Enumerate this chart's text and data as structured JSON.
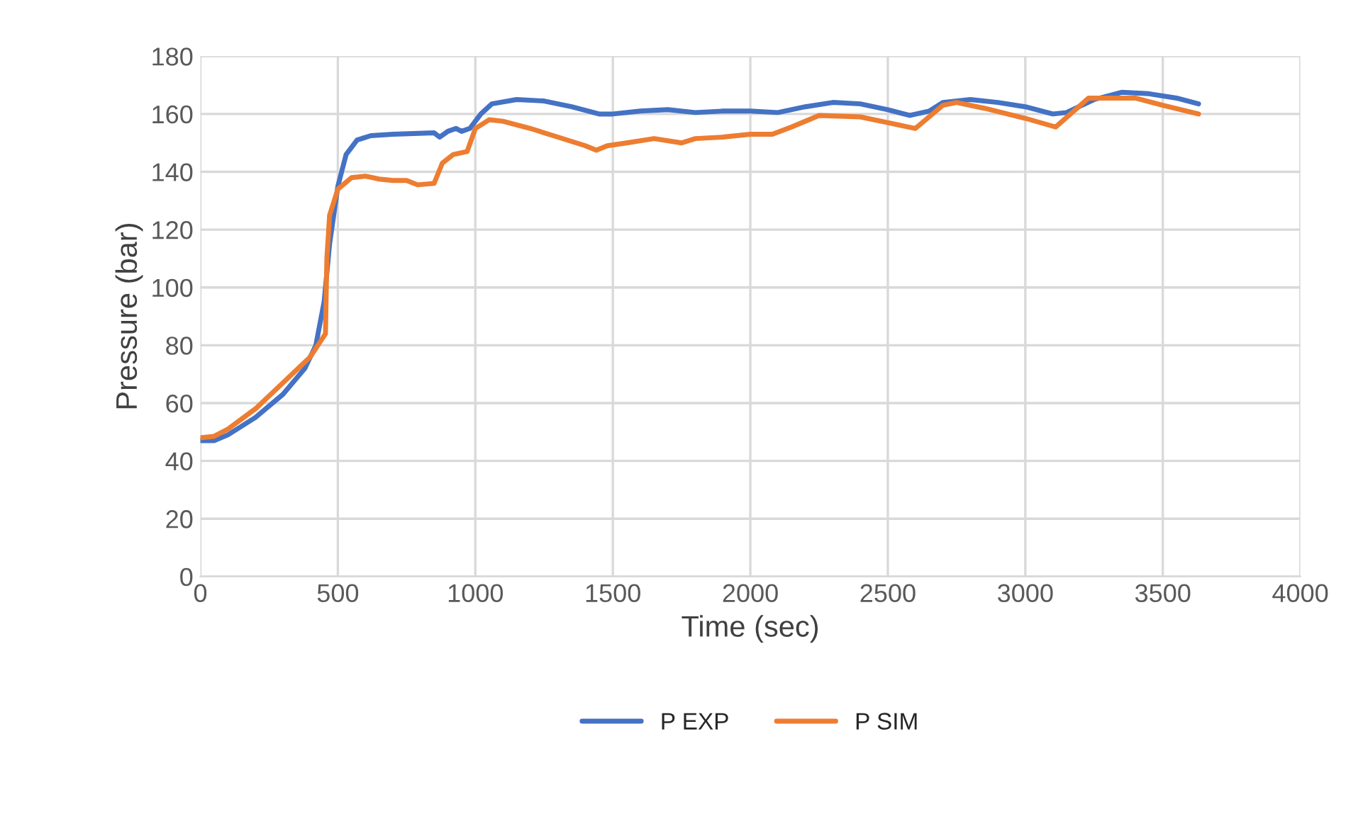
{
  "chart_data": {
    "type": "line",
    "xlabel": "Time (sec)",
    "ylabel": "Pressure (bar)",
    "xlim": [
      0,
      4000
    ],
    "xticks": [
      0,
      500,
      1000,
      1500,
      2000,
      2500,
      3000,
      3500,
      4000
    ],
    "ylim": [
      0,
      180
    ],
    "yticks": [
      0,
      20,
      40,
      60,
      80,
      100,
      120,
      140,
      160,
      180
    ],
    "grid": true,
    "legend": "bottom",
    "line_style": "solid",
    "marker": "none",
    "series": [
      {
        "name": "P EXP",
        "color": "#4472c4",
        "x": [
          0,
          50,
          100,
          200,
          300,
          380,
          420,
          450,
          470,
          500,
          530,
          570,
          620,
          700,
          850,
          870,
          900,
          930,
          950,
          980,
          1020,
          1060,
          1150,
          1250,
          1350,
          1450,
          1500,
          1600,
          1700,
          1800,
          1900,
          2000,
          2100,
          2200,
          2300,
          2400,
          2500,
          2580,
          2650,
          2700,
          2800,
          2900,
          3000,
          3100,
          3150,
          3250,
          3350,
          3450,
          3550,
          3630
        ],
        "values": [
          47,
          47,
          49,
          55,
          63,
          72,
          80,
          95,
          115,
          135,
          146,
          151,
          152.5,
          153,
          153.5,
          152,
          154,
          155,
          154,
          155,
          160,
          163.5,
          165,
          164.5,
          162.5,
          160,
          160,
          161,
          161.5,
          160.5,
          161,
          161,
          160.5,
          162.5,
          164,
          163.5,
          161.5,
          159.5,
          161,
          164,
          165,
          164,
          162.5,
          160,
          160.5,
          165,
          167.5,
          167,
          165.5,
          163.5
        ]
      },
      {
        "name": "P SIM",
        "color": "#ed7d31",
        "x": [
          0,
          50,
          100,
          200,
          300,
          400,
          455,
          460,
          470,
          500,
          550,
          600,
          650,
          700,
          750,
          790,
          850,
          880,
          920,
          970,
          1000,
          1050,
          1100,
          1200,
          1300,
          1400,
          1440,
          1480,
          1550,
          1650,
          1750,
          1800,
          1900,
          2000,
          2080,
          2150,
          2250,
          2400,
          2500,
          2600,
          2700,
          2750,
          2850,
          3000,
          3110,
          3230,
          3400,
          3500,
          3630
        ],
        "values": [
          48,
          48.5,
          51,
          58,
          67,
          76,
          84,
          110,
          125,
          134,
          138,
          138.5,
          137.5,
          137,
          137,
          135.5,
          136,
          143,
          146,
          147,
          155,
          158,
          157.5,
          155,
          152,
          149,
          147.5,
          149,
          150,
          151.5,
          150,
          151.5,
          152,
          153,
          153,
          155.5,
          159.5,
          159,
          157,
          155,
          163,
          164,
          162,
          158.5,
          155.5,
          165.5,
          165.5,
          163,
          160
        ]
      }
    ]
  }
}
